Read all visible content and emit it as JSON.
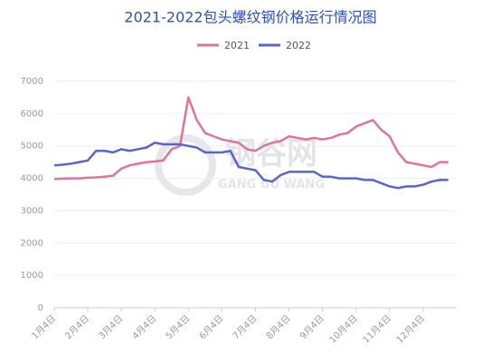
{
  "chart_data": {
    "type": "line",
    "title": "2021-2022包头螺纹钢价格运行情况图",
    "watermark": "钢谷网",
    "watermark_sub": "GANG GU WANG",
    "categories": [
      "1月4日",
      null,
      null,
      null,
      "2月4日",
      null,
      null,
      null,
      "3月4日",
      null,
      null,
      null,
      "4月4日",
      null,
      null,
      null,
      "5月4日",
      null,
      null,
      null,
      "6月4日",
      null,
      null,
      null,
      "7月4日",
      null,
      null,
      null,
      "8月4日",
      null,
      null,
      null,
      "9月4日",
      null,
      null,
      null,
      "10月4日",
      null,
      null,
      null,
      "11月4日",
      null,
      null,
      null,
      "12月4日",
      null,
      null,
      null
    ],
    "series": [
      {
        "name": "2021",
        "color": "#e0739a",
        "values": [
          3980,
          3990,
          4000,
          4000,
          4020,
          4030,
          4050,
          4080,
          4300,
          4400,
          4450,
          4500,
          4520,
          4550,
          4900,
          5000,
          6500,
          5800,
          5400,
          5300,
          5200,
          5150,
          5100,
          4900,
          4850,
          5000,
          5100,
          5150,
          5300,
          5250,
          5200,
          5250,
          5200,
          5250,
          5350,
          5400,
          5600,
          5700,
          5800,
          5500,
          5300,
          4800,
          4500,
          4450,
          4400,
          4350,
          4500,
          4500
        ]
      },
      {
        "name": "2022",
        "color": "#5a63d0",
        "values": [
          4400,
          4420,
          4450,
          4500,
          4550,
          4850,
          4850,
          4800,
          4900,
          4850,
          4900,
          4950,
          5100,
          5050,
          5050,
          5050,
          5000,
          4950,
          4800,
          4800,
          4800,
          4850,
          4350,
          4300,
          4250,
          3950,
          3900,
          4100,
          4200,
          4200,
          4200,
          4200,
          4050,
          4050,
          4000,
          4000,
          4000,
          3950,
          3950,
          3850,
          3750,
          3700,
          3750,
          3750,
          3800,
          3900,
          3950,
          3950
        ]
      }
    ],
    "ylim": [
      0,
      7000
    ],
    "yticks": [
      0,
      1000,
      2000,
      3000,
      4000,
      5000,
      6000,
      7000
    ],
    "grid": true
  }
}
